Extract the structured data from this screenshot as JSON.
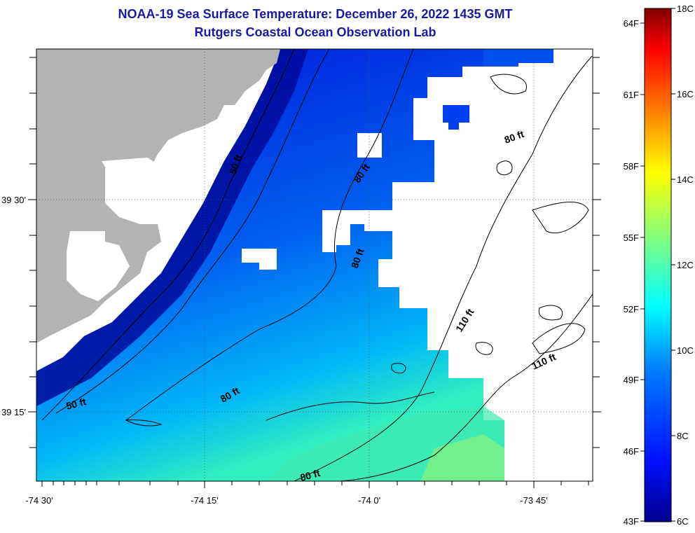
{
  "title": {
    "line1": "NOAA-19 Sea Surface Temperature:  December 26, 2022 1435 GMT",
    "line2": "Rutgers Coastal Ocean Observation Lab"
  },
  "map": {
    "lon_labels": [
      "-74 30'",
      "-74 15'",
      "-74 0'",
      "-73 45'"
    ],
    "lat_labels": [
      "39 30'",
      "39 15'"
    ],
    "isobath_labels": [
      "50 ft",
      "50 ft",
      "80 ft",
      "80 ft",
      "80 ft",
      "80 ft",
      "80 ft",
      "110 ft",
      "110 ft"
    ]
  },
  "colorbar": {
    "celsius_labels": [
      "18C",
      "16C",
      "14C",
      "12C",
      "10C",
      "8C",
      "6C"
    ],
    "fahrenheit_labels": [
      "64F",
      "61F",
      "58F",
      "55F",
      "52F",
      "49F",
      "46F",
      "43F"
    ]
  },
  "colors": {
    "land": "#b3b3b3",
    "title": "#1a1a9e",
    "no_data": "#ffffff"
  }
}
